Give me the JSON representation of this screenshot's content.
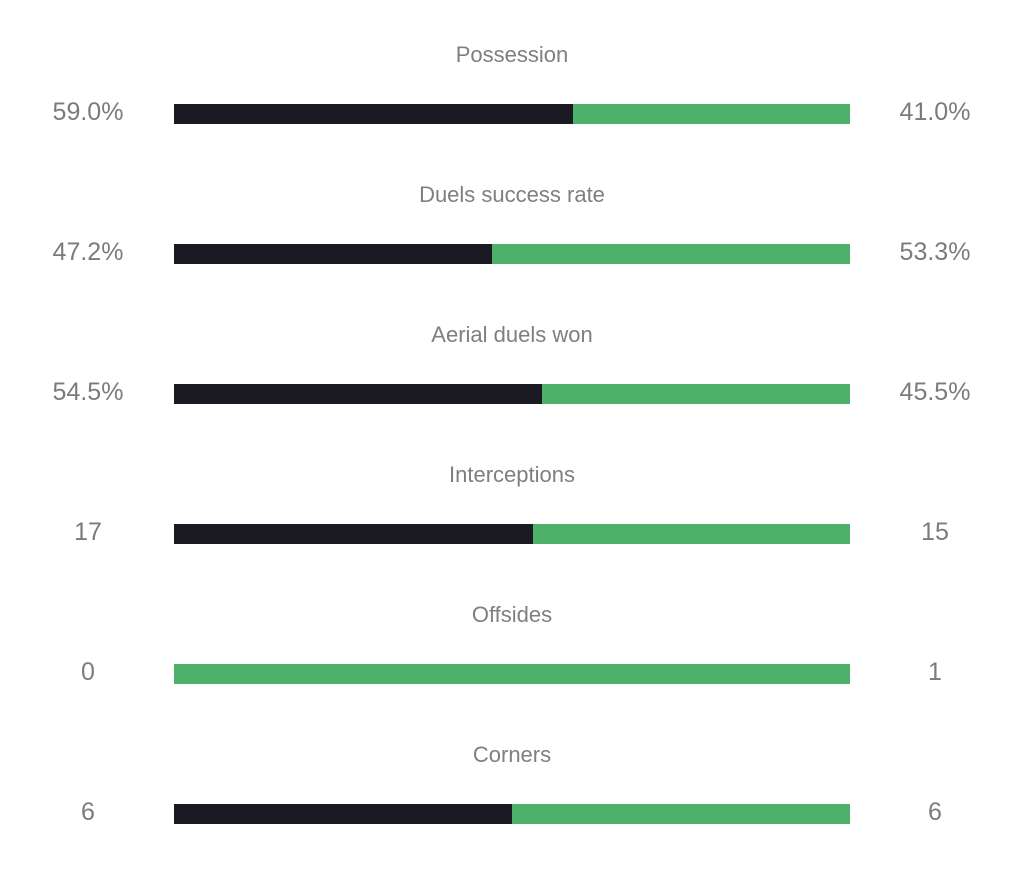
{
  "colors": {
    "home": "#1b1a23",
    "away": "#4eb16a",
    "text": "#7b7b7b"
  },
  "stats": [
    {
      "label": "Possession",
      "home": "59.0%",
      "away": "41.0%",
      "home_share": 0.59
    },
    {
      "label": "Duels success rate",
      "home": "47.2%",
      "away": "53.3%",
      "home_share": 0.47
    },
    {
      "label": "Aerial duels won",
      "home": "54.5%",
      "away": "45.5%",
      "home_share": 0.545
    },
    {
      "label": "Interceptions",
      "home": "17",
      "away": "15",
      "home_share": 0.53125
    },
    {
      "label": "Offsides",
      "home": "0",
      "away": "1",
      "home_share": 0.0
    },
    {
      "label": "Corners",
      "home": "6",
      "away": "6",
      "home_share": 0.5
    }
  ]
}
